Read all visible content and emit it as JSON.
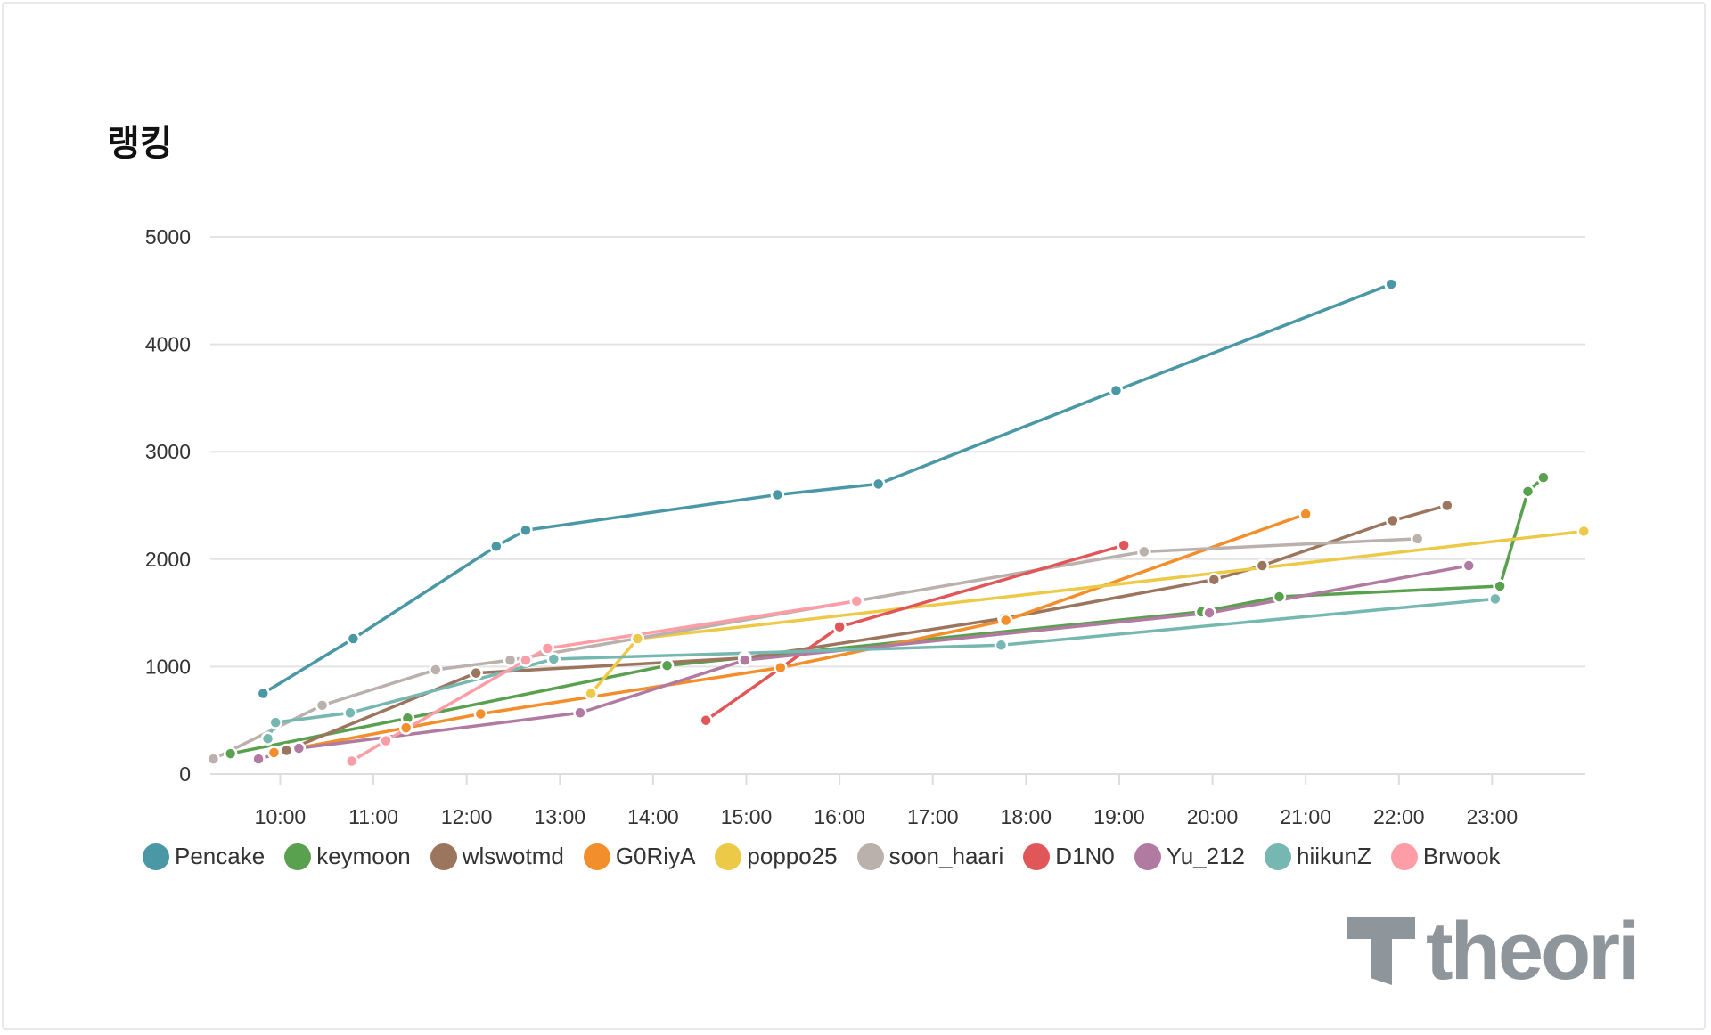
{
  "chart_data": {
    "type": "line",
    "title": "랭킹",
    "xlabel": "",
    "ylabel": "",
    "ylim": [
      0,
      5000
    ],
    "yticks": [
      "0",
      "1000",
      "2000",
      "3000",
      "4000",
      "5000"
    ],
    "xlim": [
      "09:15",
      "24:00"
    ],
    "xticks": [
      "10:00",
      "11:00",
      "12:00",
      "13:00",
      "14:00",
      "15:00",
      "16:00",
      "17:00",
      "18:00",
      "19:00",
      "20:00",
      "21:00",
      "22:00",
      "23:00"
    ],
    "grid": "horizontal",
    "legend": "bottom",
    "series": [
      {
        "name": "Pencake",
        "color": "#4a98a6",
        "points": [
          [
            "09:49",
            750
          ],
          [
            "10:47",
            1260
          ],
          [
            "12:19",
            2120
          ],
          [
            "12:38",
            2270
          ],
          [
            "15:20",
            2600
          ],
          [
            "16:25",
            2700
          ],
          [
            "18:58",
            3570
          ],
          [
            "21:55",
            4560
          ]
        ]
      },
      {
        "name": "keymoon",
        "color": "#59a14f",
        "points": [
          [
            "09:28",
            190
          ],
          [
            "11:22",
            520
          ],
          [
            "14:09",
            1010
          ],
          [
            "19:53",
            1510
          ],
          [
            "20:43",
            1650
          ],
          [
            "23:05",
            1750
          ],
          [
            "23:23",
            2630
          ],
          [
            "23:33",
            2760
          ]
        ]
      },
      {
        "name": "wlswotmd",
        "color": "#9c755f",
        "points": [
          [
            "10:04",
            220
          ],
          [
            "12:06",
            940
          ],
          [
            "14:59",
            1080
          ],
          [
            "17:46",
            1450
          ],
          [
            "20:01",
            1810
          ],
          [
            "20:32",
            1940
          ],
          [
            "21:56",
            2360
          ],
          [
            "22:31",
            2500
          ]
        ]
      },
      {
        "name": "G0RiyA",
        "color": "#f28e2b",
        "points": [
          [
            "09:56",
            200
          ],
          [
            "11:21",
            430
          ],
          [
            "12:09",
            560
          ],
          [
            "15:22",
            990
          ],
          [
            "17:47",
            1430
          ],
          [
            "21:00",
            2420
          ]
        ]
      },
      {
        "name": "poppo25",
        "color": "#edc948",
        "points": [
          [
            "13:20",
            750
          ],
          [
            "13:50",
            1260
          ],
          [
            "23:59",
            2260
          ]
        ]
      },
      {
        "name": "soon_haari",
        "color": "#bab0ac",
        "points": [
          [
            "09:17",
            140
          ],
          [
            "10:27",
            640
          ],
          [
            "11:40",
            970
          ],
          [
            "12:28",
            1060
          ],
          [
            "19:16",
            2070
          ],
          [
            "22:12",
            2190
          ]
        ]
      },
      {
        "name": "D1N0",
        "color": "#e15759",
        "points": [
          [
            "14:34",
            500
          ],
          [
            "16:00",
            1370
          ],
          [
            "19:03",
            2130
          ]
        ]
      },
      {
        "name": "Yu_212",
        "color": "#b07aa1",
        "points": [
          [
            "09:46",
            140
          ],
          [
            "10:12",
            240
          ],
          [
            "13:13",
            570
          ],
          [
            "14:59",
            1060
          ],
          [
            "19:58",
            1500
          ],
          [
            "22:45",
            1940
          ]
        ]
      },
      {
        "name": "hiikunZ",
        "color": "#76b7b2",
        "points": [
          [
            "09:52",
            330
          ],
          [
            "09:57",
            480
          ],
          [
            "10:45",
            570
          ],
          [
            "12:56",
            1070
          ],
          [
            "17:44",
            1200
          ],
          [
            "23:02",
            1630
          ]
        ]
      },
      {
        "name": "Brwook",
        "color": "#ff9da7",
        "points": [
          [
            "10:46",
            120
          ],
          [
            "11:08",
            310
          ],
          [
            "12:38",
            1060
          ],
          [
            "12:52",
            1170
          ],
          [
            "16:11",
            1610
          ]
        ]
      }
    ]
  },
  "logo": {
    "text": "theori"
  }
}
